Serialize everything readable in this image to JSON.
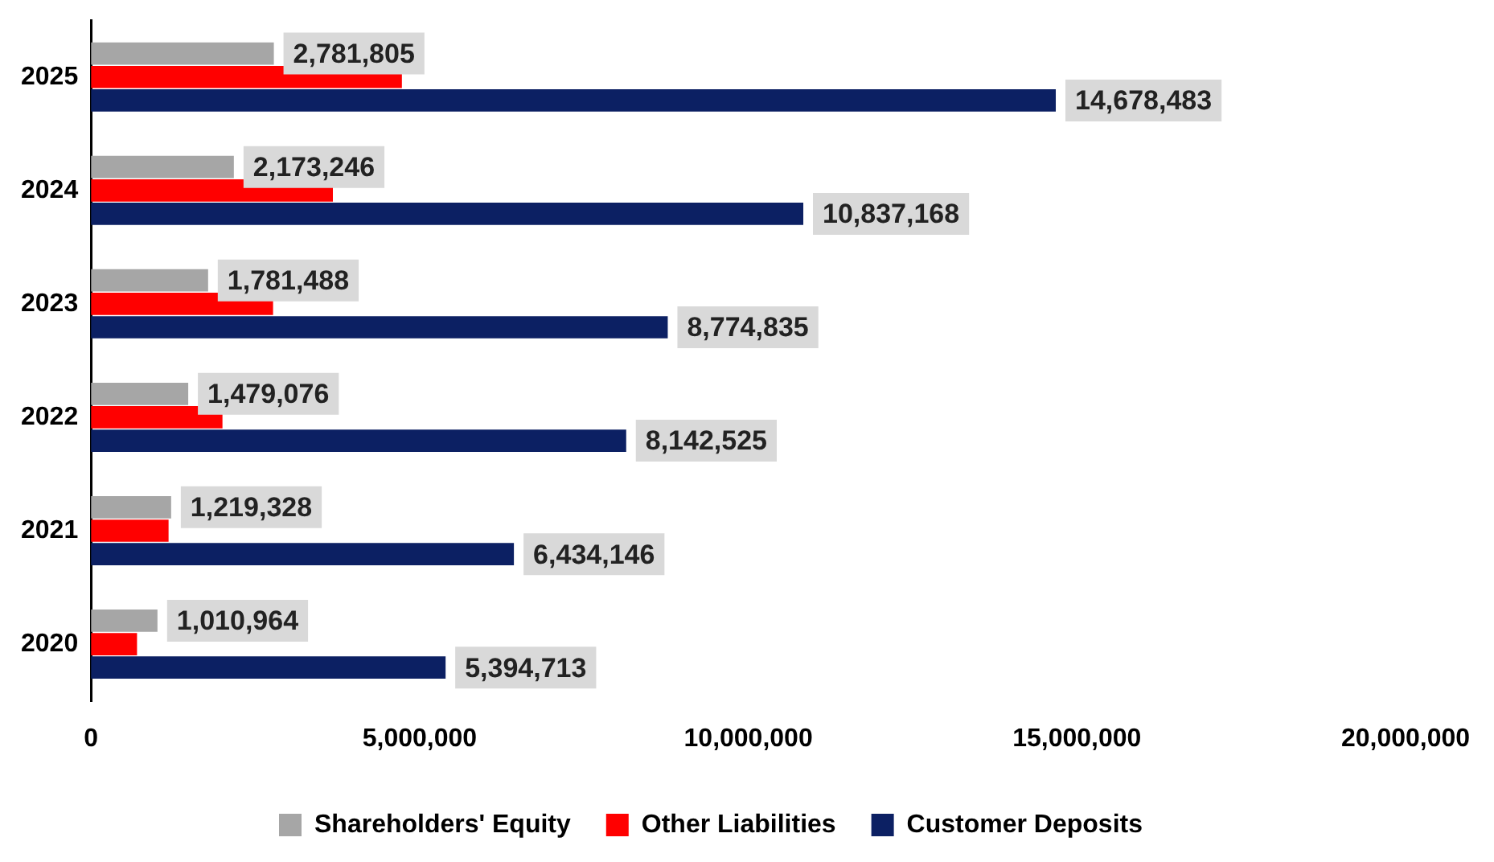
{
  "chart_data": {
    "type": "bar",
    "orientation": "horizontal",
    "categories": [
      "2025",
      "2024",
      "2023",
      "2022",
      "2021",
      "2020"
    ],
    "series": [
      {
        "name": "Shareholders' Equity",
        "color": "#a6a6a6",
        "values": [
          2781805,
          2173246,
          1781488,
          1479076,
          1219328,
          1010964
        ],
        "value_labels": [
          "2,781,805",
          "2,173,246",
          "1,781,488",
          "1,479,076",
          "1,219,328",
          "1,010,964"
        ]
      },
      {
        "name": "Other Liabilities",
        "color": "#ff0000",
        "values": [
          4730000,
          3680000,
          2770000,
          2000000,
          1180000,
          700000
        ]
      },
      {
        "name": "Customer Deposits",
        "color": "#0c2063",
        "values": [
          14678483,
          10837168,
          8774835,
          8142525,
          6434146,
          5394713
        ],
        "value_labels": [
          "14,678,483",
          "10,837,168",
          "8,774,835",
          "8,142,525",
          "6,434,146",
          "5,394,713"
        ]
      }
    ],
    "xlim": [
      0,
      20000000
    ],
    "xticks": [
      {
        "value": 0,
        "label": "0"
      },
      {
        "value": 5000000,
        "label": "5,000,000"
      },
      {
        "value": 10000000,
        "label": "10,000,000"
      },
      {
        "value": 15000000,
        "label": "15,000,000"
      },
      {
        "value": 20000000,
        "label": "20,000,000"
      }
    ],
    "grid": false,
    "legend": "bottom"
  }
}
